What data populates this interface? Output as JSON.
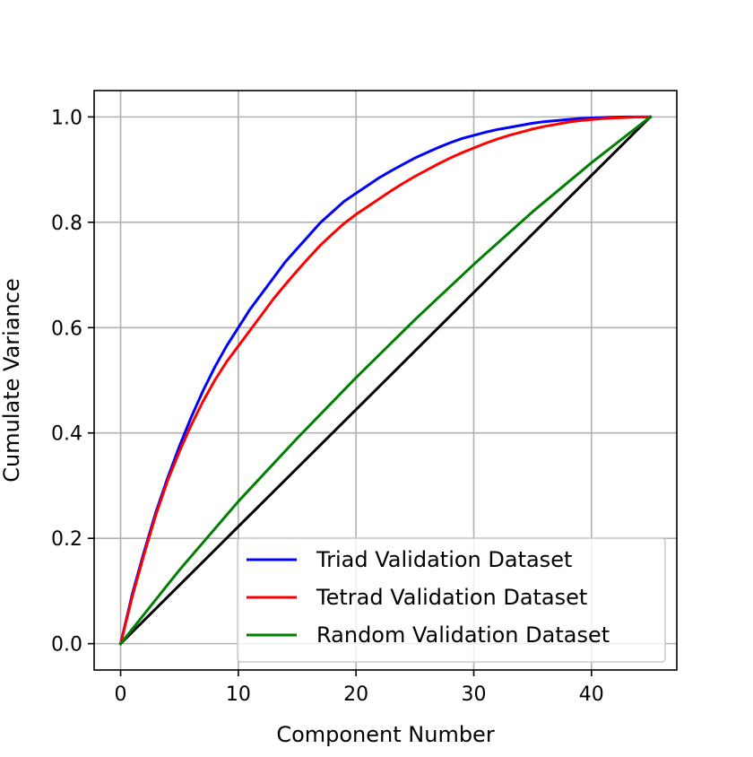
{
  "chart_data": {
    "type": "line",
    "title": "",
    "xlabel": "Component Number",
    "ylabel": "Cumulate Variance",
    "xlim": [
      -2.25,
      47.25
    ],
    "ylim": [
      -0.05,
      1.05
    ],
    "xticks": [
      0,
      10,
      20,
      30,
      40
    ],
    "yticks": [
      0.0,
      0.2,
      0.4,
      0.6,
      0.8,
      1.0
    ],
    "xtick_labels": [
      "0",
      "10",
      "20",
      "30",
      "40"
    ],
    "ytick_labels": [
      "0.0",
      "0.2",
      "0.4",
      "0.6",
      "0.8",
      "1.0"
    ],
    "grid": true,
    "legend_position": "bottom-right",
    "series": [
      {
        "name": "Triad Validation Dataset",
        "color": "#0000ff",
        "x": [
          0,
          1,
          2,
          3,
          4,
          5,
          6,
          7,
          8,
          9,
          10,
          11,
          12,
          13,
          14,
          15,
          16,
          17,
          18,
          19,
          20,
          21,
          22,
          23,
          24,
          25,
          26,
          27,
          28,
          29,
          30,
          31,
          32,
          33,
          34,
          35,
          36,
          37,
          38,
          39,
          40,
          41,
          42,
          43,
          44,
          45
        ],
        "y": [
          0.0,
          0.095,
          0.175,
          0.25,
          0.315,
          0.375,
          0.43,
          0.48,
          0.525,
          0.565,
          0.6,
          0.635,
          0.665,
          0.695,
          0.725,
          0.75,
          0.775,
          0.8,
          0.82,
          0.84,
          0.855,
          0.87,
          0.885,
          0.898,
          0.91,
          0.922,
          0.932,
          0.942,
          0.951,
          0.959,
          0.965,
          0.971,
          0.976,
          0.98,
          0.984,
          0.988,
          0.991,
          0.993,
          0.995,
          0.997,
          0.998,
          0.999,
          0.9995,
          1.0,
          1.0,
          1.0
        ]
      },
      {
        "name": "Tetrad Validation Dataset",
        "color": "#ff0000",
        "x": [
          0,
          1,
          2,
          3,
          4,
          5,
          6,
          7,
          8,
          9,
          10,
          11,
          12,
          13,
          14,
          15,
          16,
          17,
          18,
          19,
          20,
          21,
          22,
          23,
          24,
          25,
          26,
          27,
          28,
          29,
          30,
          31,
          32,
          33,
          34,
          35,
          36,
          37,
          38,
          39,
          40,
          41,
          42,
          43,
          44,
          45
        ],
        "y": [
          0.0,
          0.09,
          0.17,
          0.245,
          0.31,
          0.365,
          0.415,
          0.46,
          0.5,
          0.535,
          0.565,
          0.595,
          0.625,
          0.655,
          0.682,
          0.708,
          0.733,
          0.757,
          0.778,
          0.798,
          0.815,
          0.83,
          0.845,
          0.86,
          0.874,
          0.887,
          0.899,
          0.911,
          0.922,
          0.932,
          0.941,
          0.95,
          0.958,
          0.965,
          0.971,
          0.977,
          0.982,
          0.986,
          0.99,
          0.993,
          0.995,
          0.997,
          0.998,
          0.999,
          1.0,
          1.0
        ]
      },
      {
        "name": "Random Validation Dataset",
        "color": "#008000",
        "x": [
          0,
          5,
          10,
          15,
          20,
          25,
          30,
          35,
          40,
          45
        ],
        "y": [
          0.0,
          0.14,
          0.27,
          0.39,
          0.505,
          0.615,
          0.72,
          0.82,
          0.913,
          1.0
        ]
      },
      {
        "name": "",
        "color": "#000000",
        "x": [
          0,
          45
        ],
        "y": [
          0.0,
          1.0
        ]
      }
    ]
  }
}
